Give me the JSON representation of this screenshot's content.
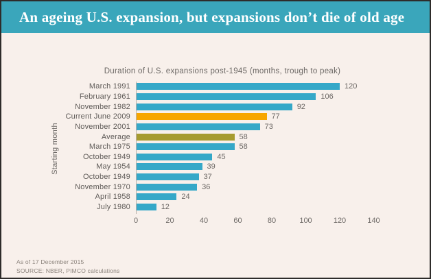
{
  "header": {
    "title": "An ageing U.S. expansion, but expansions don’t die of old age"
  },
  "colors": {
    "banner": "#3aa6bb",
    "background": "#f8f0eb",
    "teal": "#35a8c8",
    "orange": "#f7a600",
    "olive": "#a69b2f",
    "text": "#6b6764"
  },
  "chart_data": {
    "type": "bar",
    "orientation": "horizontal",
    "title": "Duration of U.S. expansions post-1945 (months, trough to peak)",
    "ylabel": "Starting month",
    "xlim": [
      0,
      140
    ],
    "x_ticks": [
      0,
      20,
      40,
      60,
      80,
      100,
      120,
      140
    ],
    "grid": false,
    "legend": false,
    "value_labels_shown": true,
    "categories": [
      "March 1991",
      "February 1961",
      "November 1982",
      "Current June 2009",
      "November 2001",
      "Average",
      "March 1975",
      "October 1949",
      "May 1954",
      "October 1949",
      "November 1970",
      "April 1958",
      "July 1980"
    ],
    "values": [
      120,
      106,
      92,
      77,
      73,
      58,
      58,
      45,
      39,
      37,
      36,
      24,
      12
    ],
    "bar_color_keys": [
      "teal",
      "teal",
      "teal",
      "orange",
      "teal",
      "olive",
      "teal",
      "teal",
      "teal",
      "teal",
      "teal",
      "teal",
      "teal"
    ]
  },
  "footer": {
    "as_of": "As of 17 December 2015",
    "source": "SOURCE: NBER, PIMCO calculations"
  }
}
